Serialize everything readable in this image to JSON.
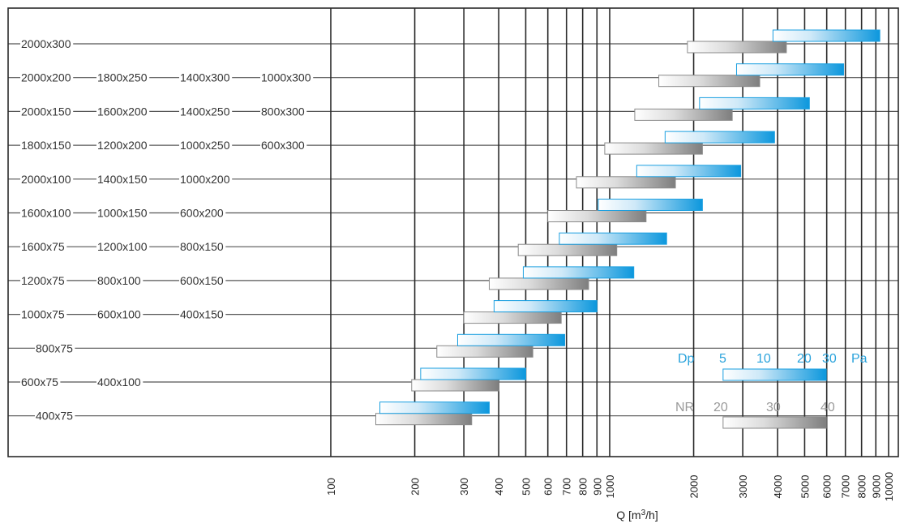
{
  "chart_data": {
    "type": "range-bar",
    "x_scale": "log",
    "xlim": [
      100,
      10000
    ],
    "xlabel": "Q [m³/h]",
    "x_ticks": [
      "100",
      "200",
      "300",
      "400",
      "500",
      "600",
      "700",
      "800",
      "900",
      "1000",
      "2000",
      "3000",
      "4000",
      "5000",
      "6000",
      "7000",
      "8000",
      "9000",
      "10000"
    ],
    "x_tick_values": [
      100,
      200,
      300,
      400,
      500,
      600,
      700,
      800,
      900,
      1000,
      2000,
      3000,
      4000,
      5000,
      6000,
      7000,
      8000,
      9000,
      10000
    ],
    "grid": true,
    "rows": [
      {
        "labels": [
          "2000x300"
        ],
        "nr": [
          1900,
          4300
        ],
        "dp": [
          3850,
          9300
        ]
      },
      {
        "labels": [
          "2000x200",
          "1800x250",
          "1400x300",
          "1000x300"
        ],
        "nr": [
          1500,
          3450
        ],
        "dp": [
          2850,
          6900
        ]
      },
      {
        "labels": [
          "2000x150",
          "1600x200",
          "1400x250",
          "800x300"
        ],
        "nr": [
          1230,
          2750
        ],
        "dp": [
          2100,
          5200
        ]
      },
      {
        "labels": [
          "1800x150",
          "1200x200",
          "1000x250",
          "600x300"
        ],
        "nr": [
          960,
          2150
        ],
        "dp": [
          1580,
          3900
        ]
      },
      {
        "labels": [
          "2000x100",
          "1400x150",
          "1000x200"
        ],
        "nr": [
          760,
          1720
        ],
        "dp": [
          1250,
          2950
        ]
      },
      {
        "labels": [
          "1600x100",
          "1000x150",
          "600x200"
        ],
        "nr": [
          600,
          1350
        ],
        "dp": [
          910,
          2150
        ]
      },
      {
        "labels": [
          "1600x75",
          "1200x100",
          "800x150"
        ],
        "nr": [
          470,
          1060
        ],
        "dp": [
          660,
          1600
        ]
      },
      {
        "labels": [
          "1200x75",
          "800x100",
          "600x150"
        ],
        "nr": [
          370,
          840
        ],
        "dp": [
          490,
          1220
        ]
      },
      {
        "labels": [
          "1000x75",
          "600x100",
          "400x150"
        ],
        "nr": [
          300,
          670
        ],
        "dp": [
          385,
          900
        ]
      },
      {
        "labels": [
          "800x75"
        ],
        "nr": [
          240,
          530
        ],
        "dp": [
          285,
          690
        ]
      },
      {
        "labels": [
          "600x75",
          "400x100"
        ],
        "nr": [
          195,
          400
        ],
        "dp": [
          210,
          500
        ]
      },
      {
        "labels": [
          "400x75"
        ],
        "nr": [
          145,
          320
        ],
        "dp": [
          150,
          370
        ]
      }
    ],
    "legend": {
      "placement": "bottom-right",
      "dp": {
        "name": "Dp",
        "unit": "Pa",
        "ticks": [
          "5",
          "10",
          "20",
          "30"
        ],
        "range": [
          2550,
          5980
        ]
      },
      "nr": {
        "name": "NR",
        "ticks": [
          "20",
          "30",
          "40"
        ],
        "range": [
          2550,
          5980
        ]
      }
    },
    "colors": {
      "dp_bar": "#1a9fe0",
      "nr_bar": "#8c8c8c",
      "grid": "#2a2a2a"
    }
  }
}
